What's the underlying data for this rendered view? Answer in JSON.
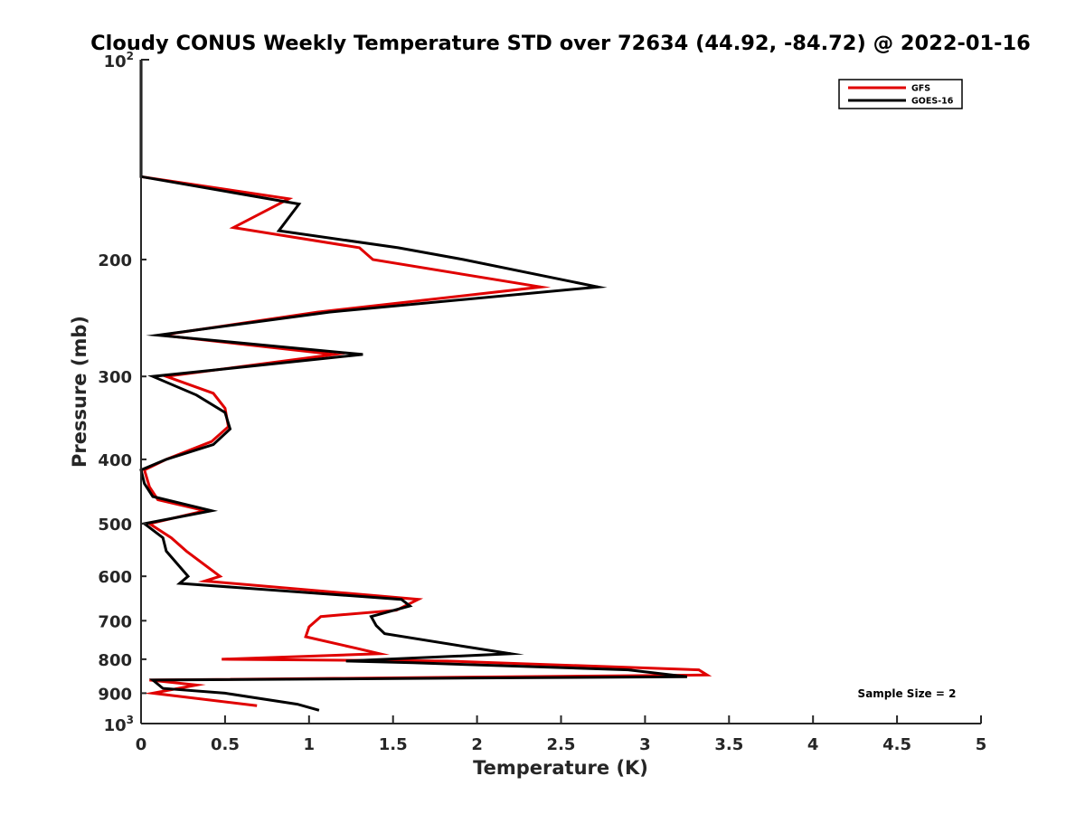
{
  "chart_data": {
    "type": "line",
    "title": "Cloudy CONUS Weekly Temperature STD over 72634 (44.92, -84.72) @ 2022-01-16",
    "xlabel": "Temperature (K)",
    "ylabel": "Pressure (mb)",
    "xlim": [
      0,
      5
    ],
    "ylim": [
      100,
      1000
    ],
    "y_scale": "log",
    "y_reversed": true,
    "grid": false,
    "legend_position": "top-right",
    "x_ticks": [
      "0",
      "0.5",
      "1",
      "1.5",
      "2",
      "2.5",
      "3",
      "3.5",
      "4",
      "4.5",
      "5"
    ],
    "x_tick_values": [
      0,
      0.5,
      1,
      1.5,
      2,
      2.5,
      3,
      3.5,
      4,
      4.5,
      5
    ],
    "y_ticks": [
      {
        "value": 100,
        "base": "10",
        "exp": "2"
      },
      {
        "value": 200,
        "label": "200"
      },
      {
        "value": 300,
        "label": "300"
      },
      {
        "value": 400,
        "label": "400"
      },
      {
        "value": 500,
        "label": "500"
      },
      {
        "value": 600,
        "label": "600"
      },
      {
        "value": 700,
        "label": "700"
      },
      {
        "value": 800,
        "label": "800"
      },
      {
        "value": 900,
        "label": "900"
      },
      {
        "value": 1000,
        "base": "10",
        "exp": "3"
      }
    ],
    "annotation": "Sample Size = 2",
    "series": [
      {
        "name": "GFS",
        "color": "#e00000",
        "points": [
          [
            0,
            100
          ],
          [
            0,
            125
          ],
          [
            0,
            150
          ],
          [
            0.88,
            162
          ],
          [
            0.55,
            179
          ],
          [
            1.3,
            192
          ],
          [
            1.38,
            200
          ],
          [
            2.38,
            220
          ],
          [
            1.05,
            240
          ],
          [
            0.12,
            260
          ],
          [
            1.15,
            278
          ],
          [
            0.15,
            300
          ],
          [
            0.43,
            318
          ],
          [
            0.5,
            335
          ],
          [
            0.52,
            357
          ],
          [
            0.42,
            376
          ],
          [
            0.15,
            400
          ],
          [
            0.02,
            415
          ],
          [
            0.05,
            440
          ],
          [
            0.1,
            460
          ],
          [
            0.38,
            478
          ],
          [
            0.05,
            500
          ],
          [
            0.18,
            525
          ],
          [
            0.27,
            550
          ],
          [
            0.47,
            600
          ],
          [
            0.38,
            610
          ],
          [
            1.65,
            650
          ],
          [
            1.52,
            675
          ],
          [
            1.07,
            690
          ],
          [
            1.0,
            715
          ],
          [
            0.98,
            740
          ],
          [
            1.28,
            770
          ],
          [
            1.42,
            785
          ],
          [
            0.48,
            800
          ],
          [
            1.82,
            805
          ],
          [
            3.32,
            830
          ],
          [
            3.37,
            845
          ],
          [
            0.05,
            860
          ],
          [
            0.33,
            875
          ],
          [
            0.07,
            900
          ],
          [
            0.69,
            940
          ]
        ]
      },
      {
        "name": "GOES-16",
        "color": "#000000",
        "points": [
          [
            0,
            100
          ],
          [
            0,
            125
          ],
          [
            0,
            150
          ],
          [
            0.94,
            165
          ],
          [
            0.82,
            181
          ],
          [
            1.53,
            192
          ],
          [
            1.92,
            200
          ],
          [
            2.72,
            220
          ],
          [
            1.12,
            240
          ],
          [
            0.1,
            260
          ],
          [
            1.32,
            278
          ],
          [
            0.07,
            300
          ],
          [
            0.33,
            320
          ],
          [
            0.5,
            340
          ],
          [
            0.53,
            360
          ],
          [
            0.43,
            380
          ],
          [
            0.15,
            400
          ],
          [
            0.0,
            415
          ],
          [
            0.02,
            435
          ],
          [
            0.07,
            455
          ],
          [
            0.42,
            478
          ],
          [
            0.02,
            500
          ],
          [
            0.13,
            525
          ],
          [
            0.15,
            550
          ],
          [
            0.28,
            600
          ],
          [
            0.23,
            615
          ],
          [
            1.55,
            650
          ],
          [
            1.6,
            665
          ],
          [
            1.37,
            690
          ],
          [
            1.4,
            712
          ],
          [
            1.45,
            732
          ],
          [
            1.92,
            765
          ],
          [
            2.2,
            785
          ],
          [
            1.22,
            805
          ],
          [
            1.62,
            810
          ],
          [
            2.9,
            830
          ],
          [
            3.25,
            850
          ],
          [
            0.07,
            860
          ],
          [
            0.13,
            885
          ],
          [
            0.5,
            900
          ],
          [
            0.93,
            935
          ],
          [
            1.06,
            955
          ]
        ]
      }
    ]
  }
}
